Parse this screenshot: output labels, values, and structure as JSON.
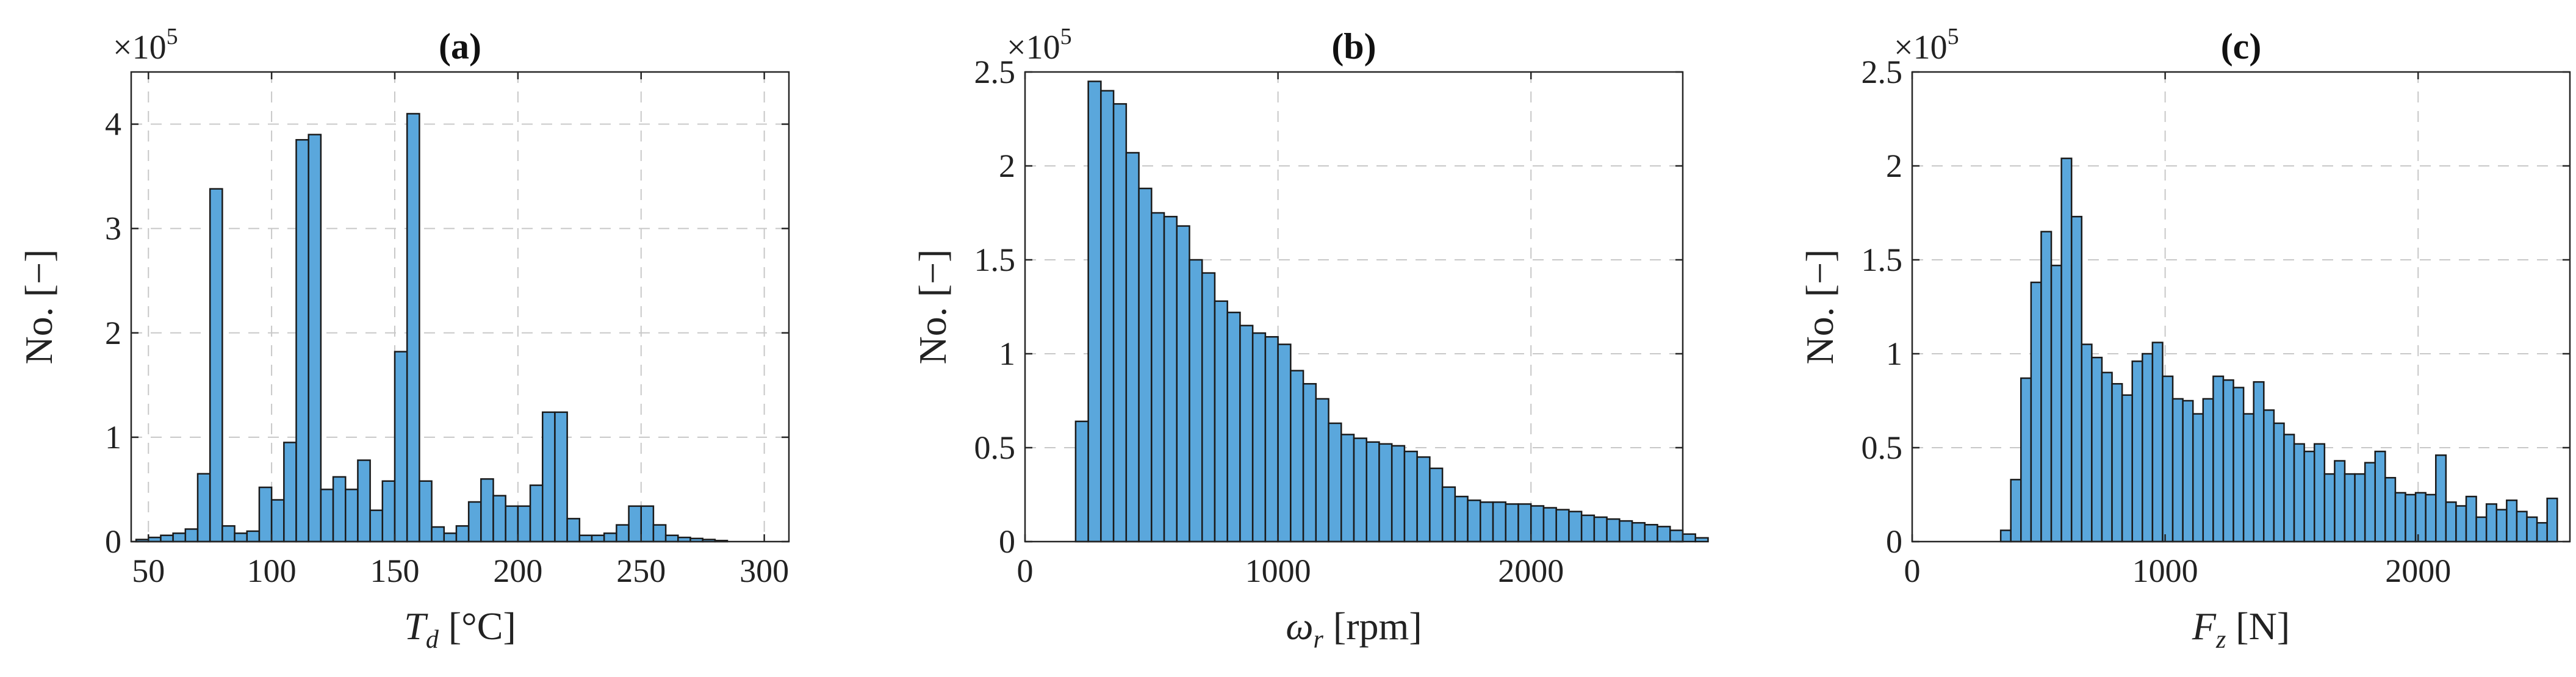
{
  "chart_data": [
    {
      "type": "bar",
      "panel": "(a)",
      "title": "(a)",
      "xlabel_symbol": "T",
      "xlabel_sub": "d",
      "xlabel_unit": "[°C]",
      "ylabel": "No. [−]",
      "exponent_label": "×10",
      "exponent_power": "5",
      "xlim": [
        43,
        310
      ],
      "ylim": [
        0,
        450000
      ],
      "xticks": [
        50,
        100,
        150,
        200,
        250,
        300
      ],
      "xtick_labels": [
        "50",
        "100",
        "150",
        "200",
        "250",
        "300"
      ],
      "yticks": [
        0,
        100000,
        200000,
        300000,
        400000
      ],
      "ytick_labels": [
        "0",
        "1",
        "2",
        "3",
        "4"
      ],
      "grid": true,
      "bar_color": "#5aa7dc",
      "bins": [
        [
          45,
          50,
          2000
        ],
        [
          50,
          55,
          4000
        ],
        [
          55,
          60,
          6000
        ],
        [
          60,
          65,
          8000
        ],
        [
          65,
          70,
          12000
        ],
        [
          70,
          75,
          65000
        ],
        [
          75,
          80,
          338000
        ],
        [
          80,
          85,
          15000
        ],
        [
          85,
          90,
          8000
        ],
        [
          90,
          95,
          10000
        ],
        [
          95,
          100,
          52000
        ],
        [
          100,
          105,
          40000
        ],
        [
          105,
          110,
          95000
        ],
        [
          110,
          115,
          385000
        ],
        [
          115,
          120,
          390000
        ],
        [
          120,
          125,
          50000
        ],
        [
          125,
          130,
          62000
        ],
        [
          130,
          135,
          50000
        ],
        [
          135,
          140,
          78000
        ],
        [
          140,
          145,
          30000
        ],
        [
          145,
          150,
          58000
        ],
        [
          150,
          155,
          182000
        ],
        [
          155,
          160,
          410000
        ],
        [
          160,
          165,
          58000
        ],
        [
          165,
          170,
          14000
        ],
        [
          170,
          175,
          8000
        ],
        [
          175,
          180,
          15000
        ],
        [
          180,
          185,
          38000
        ],
        [
          185,
          190,
          60000
        ],
        [
          190,
          195,
          44000
        ],
        [
          195,
          200,
          34000
        ],
        [
          200,
          205,
          34000
        ],
        [
          205,
          210,
          54000
        ],
        [
          210,
          215,
          124000
        ],
        [
          215,
          220,
          124000
        ],
        [
          220,
          225,
          22000
        ],
        [
          225,
          230,
          6000
        ],
        [
          230,
          235,
          6000
        ],
        [
          235,
          240,
          8000
        ],
        [
          240,
          245,
          16000
        ],
        [
          245,
          250,
          34000
        ],
        [
          250,
          255,
          34000
        ],
        [
          255,
          260,
          16000
        ],
        [
          260,
          265,
          6000
        ],
        [
          265,
          270,
          4000
        ],
        [
          270,
          275,
          3000
        ],
        [
          275,
          280,
          2000
        ],
        [
          280,
          285,
          1000
        ]
      ]
    },
    {
      "type": "bar",
      "panel": "(b)",
      "title": "(b)",
      "xlabel_symbol": "ω",
      "xlabel_sub": "r",
      "xlabel_unit": "[rpm]",
      "ylabel": "No. [−]",
      "exponent_label": "×10",
      "exponent_power": "5",
      "xlim": [
        0,
        2600
      ],
      "ylim": [
        0,
        250000
      ],
      "xticks": [
        0,
        1000,
        2000
      ],
      "xtick_labels": [
        "0",
        "1000",
        "2000"
      ],
      "yticks": [
        0,
        50000,
        100000,
        150000,
        200000,
        250000
      ],
      "ytick_labels": [
        "0",
        "0.5",
        "1",
        "1.5",
        "2",
        "2.5"
      ],
      "grid": true,
      "bar_color": "#5aa7dc",
      "bin_start": 200,
      "bin_width": 50,
      "values": [
        64000,
        245000,
        240000,
        233000,
        207000,
        188000,
        175000,
        173000,
        168000,
        150000,
        143000,
        128000,
        122000,
        115000,
        111000,
        109000,
        105000,
        91000,
        84000,
        76000,
        63000,
        57000,
        55000,
        53000,
        52000,
        51000,
        48000,
        45000,
        39000,
        29000,
        24000,
        22000,
        21000,
        21000,
        20000,
        20000,
        19000,
        18000,
        17000,
        16000,
        14000,
        13000,
        12000,
        11000,
        10000,
        9000,
        8000,
        6000,
        4000,
        2000
      ]
    },
    {
      "type": "bar",
      "panel": "(c)",
      "title": "(c)",
      "xlabel_symbol": "F",
      "xlabel_sub": "z",
      "xlabel_unit": "[N]",
      "ylabel": "No. [−]",
      "exponent_label": "×10",
      "exponent_power": "5",
      "xlim": [
        0,
        2600
      ],
      "ylim": [
        0,
        250000
      ],
      "xticks": [
        0,
        1000,
        2000
      ],
      "xtick_labels": [
        "0",
        "1000",
        "2000"
      ],
      "yticks": [
        0,
        50000,
        100000,
        150000,
        200000,
        250000
      ],
      "ytick_labels": [
        "0",
        "0.5",
        "1",
        "1.5",
        "2",
        "2.5"
      ],
      "grid": true,
      "bar_color": "#5aa7dc",
      "bin_start": 350,
      "bin_width": 40,
      "values": [
        6000,
        33000,
        87000,
        138000,
        165000,
        147000,
        204000,
        173000,
        105000,
        98000,
        90000,
        84000,
        78000,
        96000,
        100000,
        106000,
        88000,
        76000,
        75000,
        68000,
        76000,
        88000,
        86000,
        82000,
        68000,
        85000,
        70000,
        63000,
        57000,
        52000,
        48000,
        52000,
        36000,
        43000,
        36000,
        36000,
        42000,
        48000,
        34000,
        26000,
        25000,
        26000,
        25000,
        46000,
        21000,
        19000,
        24000,
        13000,
        20000,
        17000,
        22000,
        16000,
        13000,
        10000,
        23000
      ]
    }
  ]
}
